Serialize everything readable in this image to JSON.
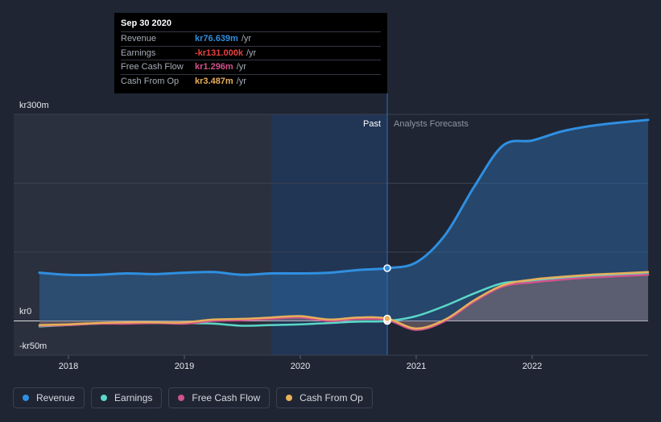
{
  "chart_data": {
    "type": "line",
    "title": "",
    "xlabel": "",
    "ylabel": "",
    "ylim": [
      -50,
      300
    ],
    "x_ticks": [
      "2018",
      "2019",
      "2020",
      "2021",
      "2022"
    ],
    "y_ticks": [
      {
        "value": 300,
        "label": "kr300m"
      },
      {
        "value": 0,
        "label": "kr0"
      },
      {
        "value": -50,
        "label": "-kr50m"
      }
    ],
    "past_label": "Past",
    "forecast_label": "Analysts Forecasts",
    "divider_date": 2020.75,
    "series": [
      {
        "name": "Revenue",
        "color": "#2f8fe0",
        "x": [
          2017.75,
          2018.0,
          2018.25,
          2018.5,
          2018.75,
          2019.0,
          2019.25,
          2019.5,
          2019.75,
          2020.0,
          2020.25,
          2020.5,
          2020.75,
          2021.0,
          2021.25,
          2021.5,
          2021.75,
          2022.0,
          2022.25,
          2022.5,
          2022.75,
          2023.0
        ],
        "values": [
          70,
          67,
          67,
          69,
          68,
          70,
          71,
          67,
          69,
          69,
          70,
          74,
          76.6,
          85,
          125,
          195,
          255,
          262,
          275,
          283,
          288,
          292
        ]
      },
      {
        "name": "Earnings",
        "color": "#5ad7c8",
        "x": [
          2017.75,
          2018.0,
          2018.25,
          2018.5,
          2018.75,
          2019.0,
          2019.25,
          2019.5,
          2019.75,
          2020.0,
          2020.25,
          2020.5,
          2020.75,
          2021.0,
          2021.25,
          2021.5,
          2021.75,
          2022.0,
          2022.25,
          2022.5,
          2022.75,
          2023.0
        ],
        "values": [
          -8,
          -6,
          -4,
          -3,
          -3,
          -3,
          -4,
          -7,
          -6,
          -5,
          -3,
          -1,
          -0.13,
          7,
          22,
          40,
          55,
          58,
          62,
          65,
          67,
          68
        ]
      },
      {
        "name": "Free Cash Flow",
        "color": "#d0538c",
        "x": [
          2017.75,
          2018.0,
          2018.25,
          2018.5,
          2018.75,
          2019.0,
          2019.25,
          2019.5,
          2019.75,
          2020.0,
          2020.25,
          2020.5,
          2020.75,
          2021.0,
          2021.25,
          2021.5,
          2021.75,
          2022.0,
          2022.25,
          2022.5,
          2022.75,
          2023.0
        ],
        "values": [
          -7,
          -6,
          -4,
          -4,
          -3,
          -4,
          0,
          1,
          3,
          5,
          0,
          3,
          1.3,
          -13,
          0,
          28,
          50,
          56,
          60,
          63,
          65,
          67
        ]
      },
      {
        "name": "Cash From Op",
        "color": "#e8b05a",
        "x": [
          2017.75,
          2018.0,
          2018.25,
          2018.5,
          2018.75,
          2019.0,
          2019.25,
          2019.5,
          2019.75,
          2020.0,
          2020.25,
          2020.5,
          2020.75,
          2021.0,
          2021.25,
          2021.5,
          2021.75,
          2022.0,
          2022.25,
          2022.5,
          2022.75,
          2023.0
        ],
        "values": [
          -6,
          -5,
          -3,
          -2,
          -2,
          -2,
          2,
          3,
          5,
          7,
          2,
          5,
          3.5,
          -11,
          2,
          30,
          52,
          60,
          64,
          67,
          69,
          71
        ]
      }
    ]
  },
  "tooltip": {
    "date": "Sep 30 2020",
    "rows": [
      {
        "label": "Revenue",
        "value": "kr76.639m",
        "unit": "/yr",
        "color": "#2f8fe0"
      },
      {
        "label": "Earnings",
        "value": "-kr131.000k",
        "unit": "/yr",
        "color": "#e8423f"
      },
      {
        "label": "Free Cash Flow",
        "value": "kr1.296m",
        "unit": "/yr",
        "color": "#d0538c"
      },
      {
        "label": "Cash From Op",
        "value": "kr3.487m",
        "unit": "/yr",
        "color": "#e8b05a"
      }
    ]
  },
  "legend": [
    {
      "label": "Revenue",
      "color": "#2f8fe0"
    },
    {
      "label": "Earnings",
      "color": "#5ad7c8"
    },
    {
      "label": "Free Cash Flow",
      "color": "#d0538c"
    },
    {
      "label": "Cash From Op",
      "color": "#e8b05a"
    }
  ]
}
